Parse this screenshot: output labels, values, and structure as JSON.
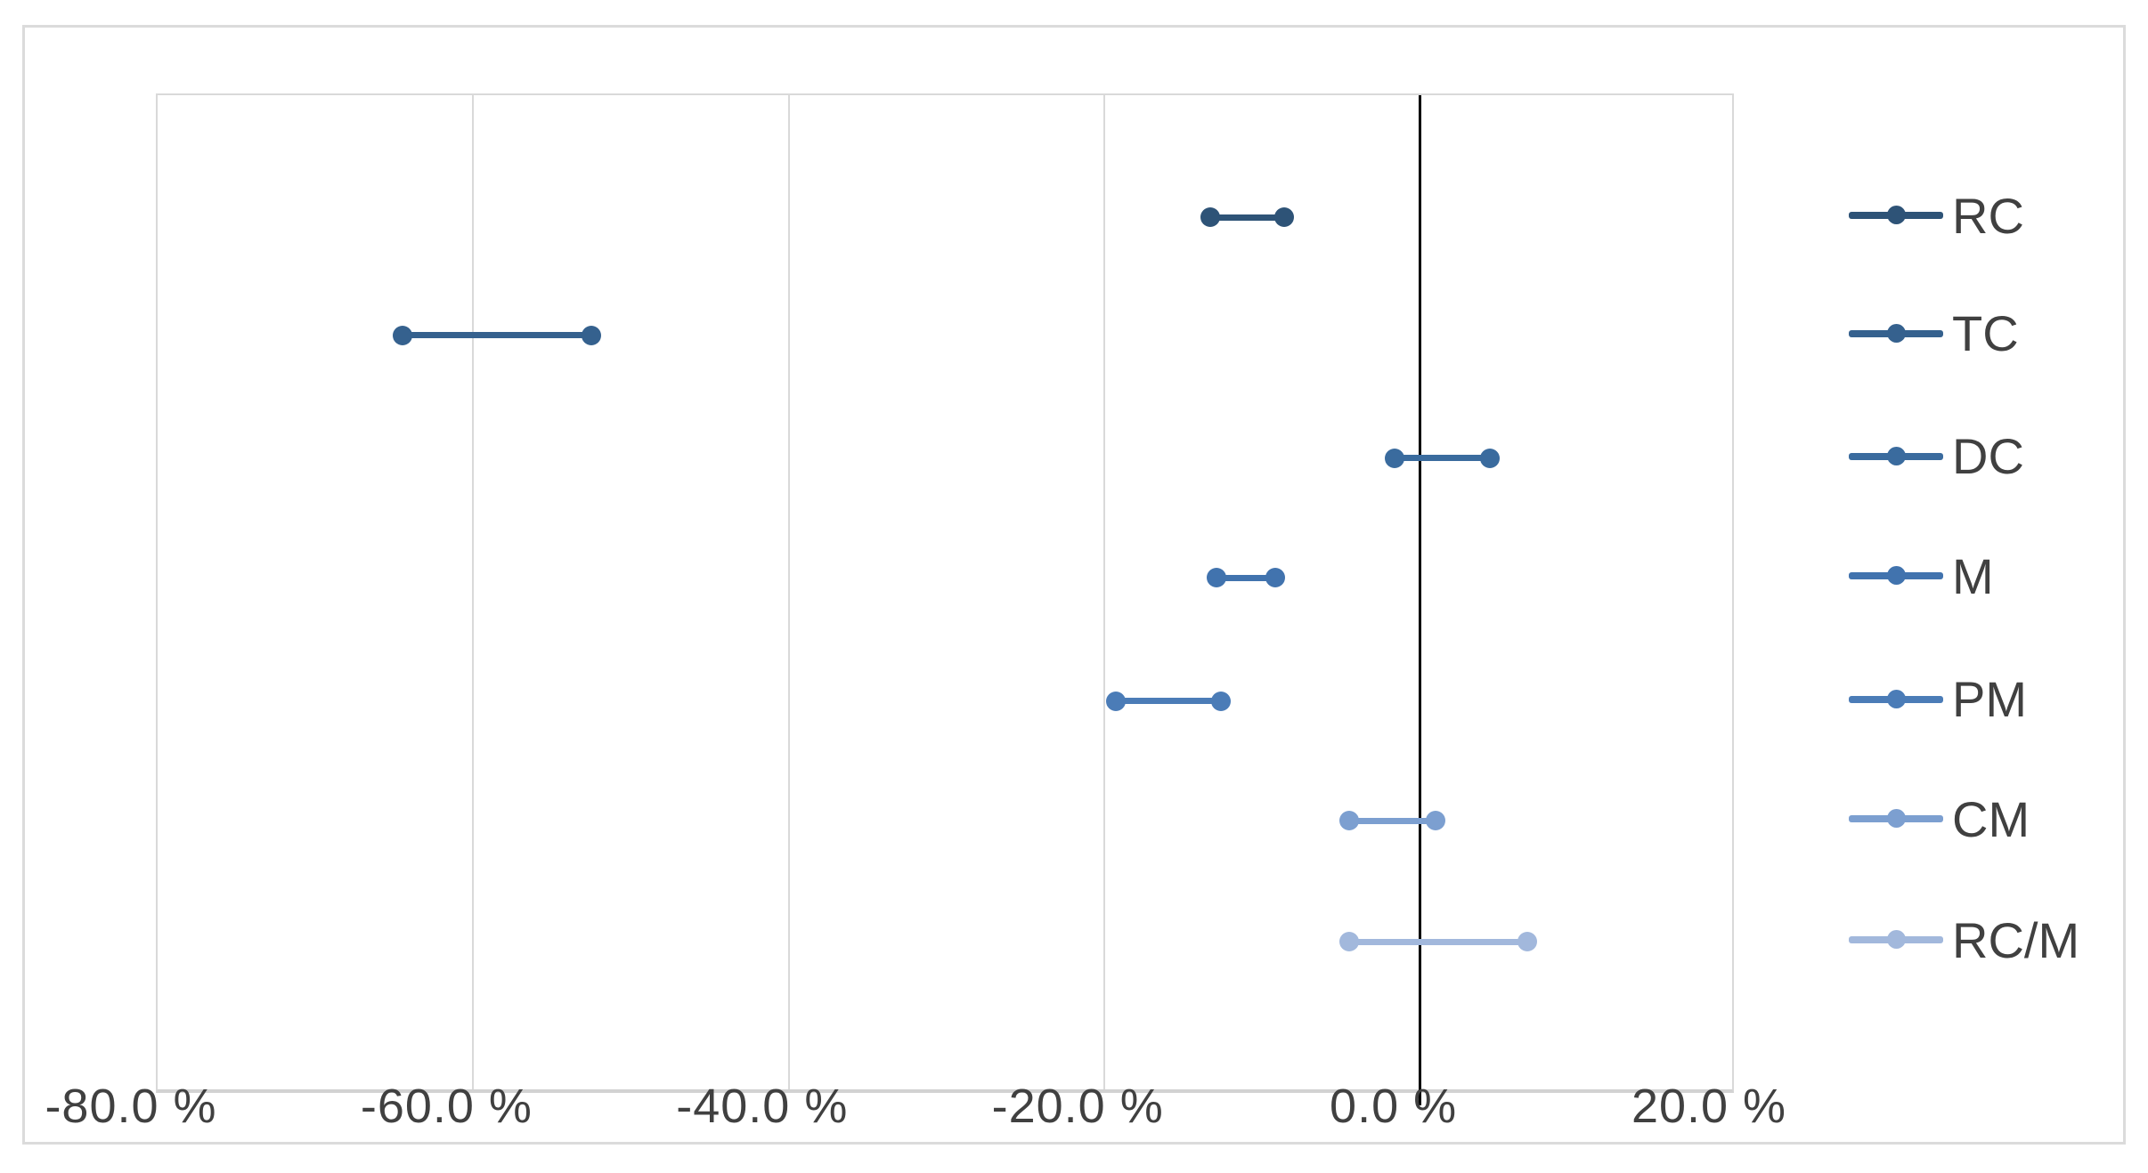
{
  "chart_data": {
    "type": "scatter",
    "subtype": "dumbbell-interval-plot",
    "title": "",
    "xlabel": "",
    "ylabel": "",
    "x_axis": {
      "min": -80,
      "max": 20,
      "tick_values": [
        -80,
        -60,
        -40,
        -20,
        0,
        20
      ],
      "tick_labels": [
        "-80.0 %",
        "-60.0 %",
        "-40.0 %",
        "-20.0 %",
        "0.0 %",
        "20.0 %"
      ],
      "number_format": "0.0 %",
      "zero_line_value": 0
    },
    "grid": true,
    "legend_position": "right",
    "series": [
      {
        "name": "RC",
        "low": -13.3,
        "high": -8.6,
        "color": "#2E5377",
        "row_fraction": 0.122
      },
      {
        "name": "TC",
        "low": -64.5,
        "high": -52.5,
        "color": "#35618E",
        "row_fraction": 0.24
      },
      {
        "name": "DC",
        "low": -1.6,
        "high": 4.4,
        "color": "#3A6B9E",
        "row_fraction": 0.363
      },
      {
        "name": "M",
        "low": -12.9,
        "high": -9.2,
        "color": "#4173AE",
        "row_fraction": 0.483
      },
      {
        "name": "PM",
        "low": -19.3,
        "high": -12.6,
        "color": "#4B7CB7",
        "row_fraction": 0.606
      },
      {
        "name": "CM",
        "low": -4.5,
        "high": 1.0,
        "color": "#7C9FD0",
        "row_fraction": 0.726
      },
      {
        "name": "RC/M",
        "low": -4.5,
        "high": 6.8,
        "color": "#A2B8DC",
        "row_fraction": 0.847
      }
    ],
    "colors": {
      "gridline": "#D9D9D9",
      "axis_line": "#D2D2D2",
      "zero_line": "#000000",
      "axis_text": "#404040",
      "chart_border": "#DBDBDB",
      "background": "#FFFFFF"
    }
  }
}
